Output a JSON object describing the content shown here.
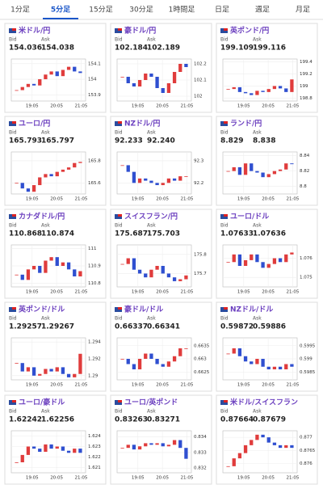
{
  "tabs": {
    "items": [
      "1分足",
      "5分足",
      "15分足",
      "30分足",
      "1時間足",
      "日足",
      "週足",
      "月足"
    ],
    "active": 1
  },
  "bid_label": "Bid",
  "ask_label": "Ask",
  "panels": [
    {
      "title": "米ドル/円",
      "bid": "154.036",
      "ask": "154.038",
      "ylim": [
        153.86,
        154.13
      ],
      "yticks": [
        154.1,
        154,
        153.9
      ],
      "xticks": [
        "19:05",
        "20:05",
        "21:05"
      ],
      "closes": [
        153.93,
        153.95,
        153.97,
        153.96,
        154.0,
        154.03,
        154.05,
        154.02,
        154.06,
        154.08,
        154.05,
        154.04
      ]
    },
    {
      "title": "豪ドル/円",
      "bid": "102.184",
      "ask": "102.189",
      "ylim": [
        101.97,
        102.23
      ],
      "yticks": [
        102.2,
        102.1,
        102
      ],
      "xticks": [
        "19:05",
        "20:05",
        "21:05"
      ],
      "closes": [
        102.12,
        102.08,
        102.06,
        102.1,
        102.14,
        102.12,
        102.05,
        102.02,
        102.08,
        102.15,
        102.2,
        102.18
      ]
    },
    {
      "title": "英ポンド/円",
      "bid": "199.109",
      "ask": "199.116",
      "ylim": [
        198.75,
        199.45
      ],
      "yticks": [
        199.4,
        199.2,
        199,
        198.8
      ],
      "xticks": [
        "19:05",
        "20:05",
        "21:05"
      ],
      "closes": [
        198.95,
        198.98,
        198.9,
        198.88,
        198.85,
        198.92,
        198.9,
        198.95,
        199.0,
        198.96,
        198.9,
        199.11
      ]
    },
    {
      "title": "ユーロ/円",
      "bid": "165.793",
      "ask": "165.797",
      "ylim": [
        165.5,
        165.88
      ],
      "yticks": [
        165.8,
        165.6
      ],
      "xticks": [
        "19:05",
        "20:05",
        "21:05"
      ],
      "closes": [
        165.6,
        165.55,
        165.52,
        165.58,
        165.65,
        165.68,
        165.66,
        165.7,
        165.72,
        165.74,
        165.78,
        165.79
      ]
    },
    {
      "title": "NZドル/円",
      "bid": "92.233",
      "ask": "92.240",
      "ylim": [
        92.15,
        92.34
      ],
      "yticks": [
        92.3,
        92.2
      ],
      "xticks": [
        "19:05",
        "20:05",
        "21:05"
      ],
      "closes": [
        92.28,
        92.25,
        92.2,
        92.22,
        92.21,
        92.2,
        92.19,
        92.2,
        92.22,
        92.21,
        92.23,
        92.23
      ]
    },
    {
      "title": "ランド/円",
      "bid": "8.829",
      "ask": "8.838",
      "ylim": [
        8.79,
        8.845
      ],
      "yticks": [
        8.84,
        8.82,
        8.8
      ],
      "xticks": [
        "19:05",
        "20:05",
        "21:05"
      ],
      "closes": [
        8.82,
        8.825,
        8.815,
        8.83,
        8.82,
        8.818,
        8.812,
        8.816,
        8.82,
        8.822,
        8.83,
        8.829
      ]
    },
    {
      "title": "カナダドル/円",
      "bid": "110.868",
      "ask": "110.874",
      "ylim": [
        110.78,
        111.02
      ],
      "yticks": [
        111,
        110.9,
        110.8
      ],
      "xticks": [
        "19:05",
        "20:05",
        "21:05"
      ],
      "closes": [
        110.85,
        110.82,
        110.88,
        110.9,
        110.86,
        110.93,
        110.95,
        110.9,
        110.92,
        110.88,
        110.84,
        110.87
      ]
    },
    {
      "title": "スイスフラン/円",
      "bid": "175.687",
      "ask": "175.703",
      "ylim": [
        175.63,
        175.85
      ],
      "yticks": [
        175.8,
        175.7
      ],
      "xticks": [
        "19:05",
        "20:05",
        "21:05"
      ],
      "closes": [
        175.75,
        175.78,
        175.72,
        175.7,
        175.68,
        175.72,
        175.74,
        175.7,
        175.68,
        175.66,
        175.67,
        175.69
      ]
    },
    {
      "title": "ユーロ/ドル",
      "bid": "1.07633",
      "ask": "1.07636",
      "ylim": [
        1.0745,
        1.0767
      ],
      "yticks": [
        1.076,
        1.075
      ],
      "xticks": [
        "19:05",
        "20:05",
        "21:05"
      ],
      "closes": [
        1.0758,
        1.0762,
        1.0756,
        1.0759,
        1.0762,
        1.0758,
        1.0755,
        1.0757,
        1.076,
        1.0758,
        1.0762,
        1.0763
      ]
    },
    {
      "title": "英ポンド/ドル",
      "bid": "1.29257",
      "ask": "1.29267",
      "ylim": [
        1.2895,
        1.2945
      ],
      "yticks": [
        1.294,
        1.292,
        1.29
      ],
      "xticks": [
        "19:05",
        "20:05",
        "21:05"
      ],
      "closes": [
        1.2915,
        1.2905,
        1.291,
        1.29,
        1.2902,
        1.2908,
        1.2905,
        1.291,
        1.2902,
        1.2898,
        1.2902,
        1.2926
      ]
    },
    {
      "title": "豪ドル/ドル",
      "bid": "0.66337",
      "ask": "0.66341",
      "ylim": [
        0.6622,
        0.6638
      ],
      "yticks": [
        0.6635,
        0.663,
        0.6625
      ],
      "xticks": [
        "19:05",
        "20:05",
        "21:05"
      ],
      "closes": [
        0.663,
        0.6628,
        0.6626,
        0.663,
        0.6632,
        0.663,
        0.6628,
        0.6627,
        0.6629,
        0.6631,
        0.6634,
        0.6634
      ]
    },
    {
      "title": "NZドル/ドル",
      "bid": "0.59872",
      "ask": "0.59886",
      "ylim": [
        0.5982,
        0.5998
      ],
      "yticks": [
        0.5995,
        0.599,
        0.5985
      ],
      "xticks": [
        "19:05",
        "20:05",
        "21:05"
      ],
      "closes": [
        0.5992,
        0.5994,
        0.5991,
        0.5989,
        0.5988,
        0.599,
        0.5987,
        0.5986,
        0.5987,
        0.5986,
        0.5988,
        0.5987
      ]
    },
    {
      "title": "ユーロ/豪ドル",
      "bid": "1.62242",
      "ask": "1.62256",
      "ylim": [
        1.6205,
        1.6245
      ],
      "yticks": [
        1.624,
        1.623,
        1.622,
        1.621
      ],
      "xticks": [
        "19:05",
        "20:05",
        "21:05"
      ],
      "closes": [
        1.6215,
        1.6222,
        1.623,
        1.6228,
        1.6225,
        1.6232,
        1.6228,
        1.623,
        1.6226,
        1.6224,
        1.6228,
        1.6224
      ]
    },
    {
      "title": "ユーロ/英ポンド",
      "bid": "0.83263",
      "ask": "0.83271",
      "ylim": [
        0.8317,
        0.8344
      ],
      "yticks": [
        0.834,
        0.833,
        0.832
      ],
      "xticks": [
        "19:05",
        "20:05",
        "21:05"
      ],
      "closes": [
        0.8333,
        0.8335,
        0.8332,
        0.8334,
        0.8336,
        0.8335,
        0.8336,
        0.8334,
        0.8335,
        0.8338,
        0.8333,
        0.8326
      ]
    },
    {
      "title": "米ドル/スイスフラン",
      "bid": "0.87664",
      "ask": "0.87679",
      "ylim": [
        0.87565,
        0.87725
      ],
      "yticks": [
        0.877,
        0.8765,
        0.876
      ],
      "xticks": [
        "19:05",
        "20:05",
        "21:05"
      ],
      "closes": [
        0.8759,
        0.8762,
        0.8764,
        0.8767,
        0.8769,
        0.8771,
        0.877,
        0.8768,
        0.8767,
        0.8766,
        0.8767,
        0.8766
      ]
    }
  ]
}
